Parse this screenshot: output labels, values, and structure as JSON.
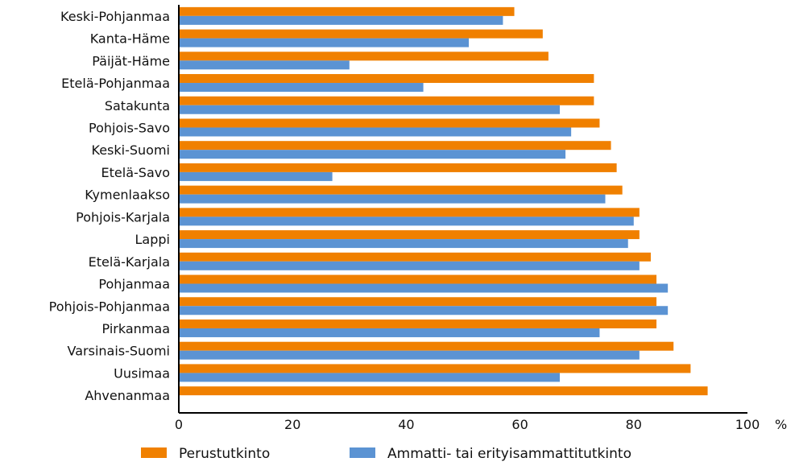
{
  "chart_data": {
    "type": "bar",
    "orientation": "horizontal",
    "categories": [
      "Keski-Pohjanmaa",
      "Kanta-Häme",
      "Päijät-Häme",
      "Etelä-Pohjanmaa",
      "Satakunta",
      "Pohjois-Savo",
      "Keski-Suomi",
      "Etelä-Savo",
      "Kymenlaakso",
      "Pohjois-Karjala",
      "Lappi",
      "Etelä-Karjala",
      "Pohjanmaa",
      "Pohjois-Pohjanmaa",
      "Pirkanmaa",
      "Varsinais-Suomi",
      "Uusimaa",
      "Ahvenanmaa"
    ],
    "series": [
      {
        "name": "Perustutkinto",
        "color": "#f08000",
        "values": [
          59,
          64,
          65,
          73,
          73,
          74,
          76,
          77,
          78,
          81,
          81,
          83,
          84,
          84,
          84,
          87,
          90,
          93
        ]
      },
      {
        "name": "Ammatti- tai erityisammattitutkinto",
        "color": "#5b93d3",
        "values": [
          57,
          51,
          30,
          43,
          67,
          69,
          68,
          27,
          75,
          80,
          79,
          81,
          86,
          86,
          74,
          81,
          67,
          null
        ]
      }
    ],
    "xlim": [
      0,
      100
    ],
    "xticks": [
      "0",
      "20",
      "40",
      "60",
      "80",
      "100"
    ],
    "unit_label": "%",
    "grid": false,
    "legend": "bottom"
  }
}
